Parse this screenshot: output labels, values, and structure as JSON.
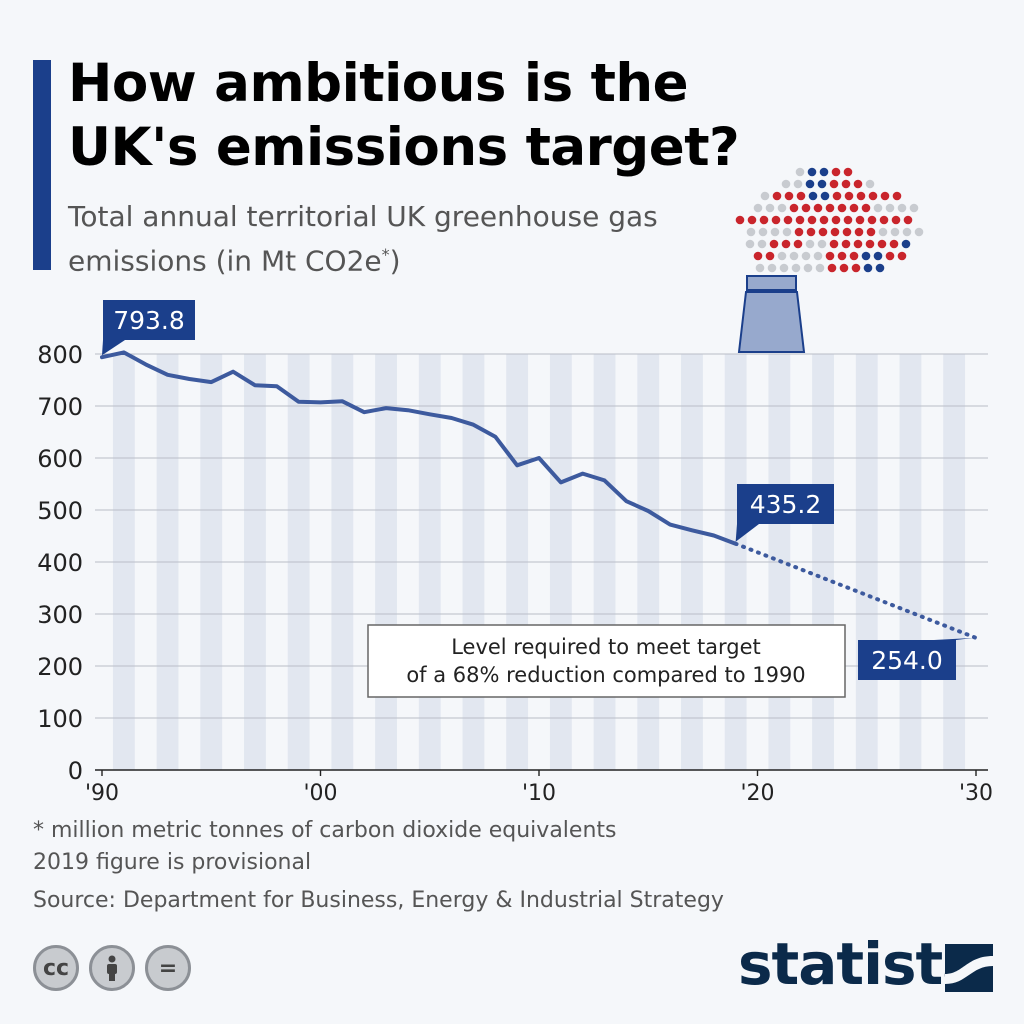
{
  "header": {
    "title": "How ambitious is the UK's emissions target?",
    "subtitle": "Total annual territorial UK greenhouse gas emissions (in Mt CO2e",
    "subtitle_sup": "*",
    "subtitle_end": ")"
  },
  "footer": {
    "note1": "* million metric tonnes of carbon dioxide equivalents",
    "note2": "2019 figure is provisional",
    "source": "Source: Department for Business, Energy & Industrial Strategy",
    "brand": "statista",
    "license_icons": [
      "cc-icon",
      "person-icon",
      "equals-icon"
    ],
    "license_cc": "cc",
    "license_eq": "="
  },
  "colors": {
    "accent": "#1b3f8b",
    "line": "#3d5a9e",
    "callout": "#1b3f8b",
    "stripe": "#e2e7f0"
  },
  "chart_data": {
    "type": "line",
    "ylim": [
      0,
      800
    ],
    "yticks": [
      0,
      100,
      200,
      300,
      400,
      500,
      600,
      700,
      800
    ],
    "xlim": [
      1990,
      2030
    ],
    "xticks": [
      {
        "value": 1990,
        "label": "'90"
      },
      {
        "value": 2000,
        "label": "'00"
      },
      {
        "value": 2010,
        "label": "'10"
      },
      {
        "value": 2020,
        "label": "'20"
      },
      {
        "value": 2030,
        "label": "'30"
      }
    ],
    "series": [
      {
        "style": "solid",
        "x": [
          1990,
          1991,
          1992,
          1993,
          1994,
          1995,
          1996,
          1997,
          1998,
          1999,
          2000,
          2001,
          2002,
          2003,
          2004,
          2005,
          2006,
          2007,
          2008,
          2009,
          2010,
          2011,
          2012,
          2013,
          2014,
          2015,
          2016,
          2017,
          2018,
          2019
        ],
        "y": [
          793.8,
          803,
          780,
          760,
          752,
          746,
          766,
          740,
          738,
          708,
          707,
          709,
          688,
          696,
          692,
          684,
          677,
          664,
          641,
          586,
          600,
          553,
          570,
          557,
          517,
          498,
          472,
          461,
          451,
          435.2
        ]
      },
      {
        "style": "dotted",
        "x": [
          2019,
          2030
        ],
        "y": [
          435.2,
          254.0
        ]
      }
    ],
    "labels": [
      {
        "x": 1990,
        "y": 793.8,
        "text": "793.8"
      },
      {
        "x": 2019,
        "y": 435.2,
        "text": "435.2"
      },
      {
        "x": 2030,
        "y": 254.0,
        "text": "254.0"
      }
    ],
    "annotation": {
      "line1": "Level required to meet target",
      "line2": "of a 68% reduction compared to 1990"
    },
    "grid": true
  }
}
